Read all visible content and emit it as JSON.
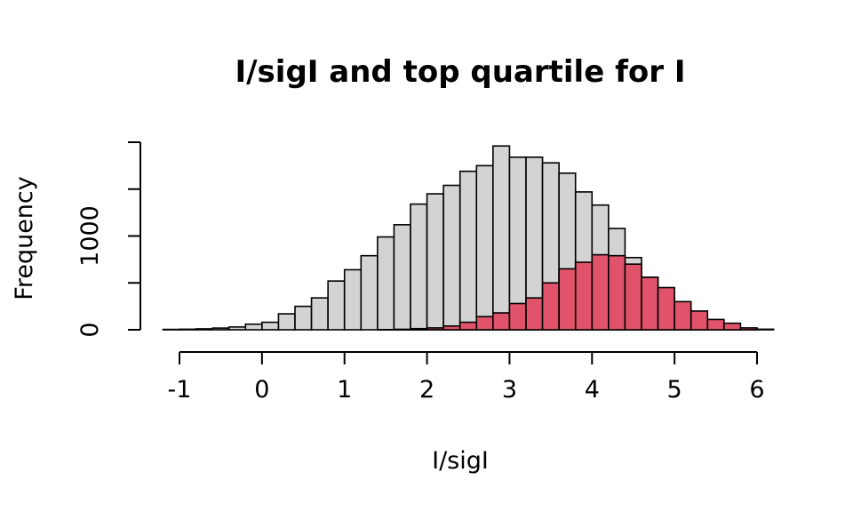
{
  "chart_data": {
    "type": "bar",
    "title": "I/sigI and top quartile for I",
    "xlabel": "I/sigI",
    "ylabel": "Frequency",
    "xlim": [
      -1,
      6
    ],
    "ylim": [
      0,
      2000
    ],
    "x_ticks": [
      "-1",
      "0",
      "1",
      "2",
      "3",
      "4",
      "5",
      "6"
    ],
    "y_ticks": [
      "0",
      "1000"
    ],
    "y_tick_marks": [
      0,
      500,
      1000,
      1500,
      2000
    ],
    "bin_width": 0.2,
    "bin_start": -1.2,
    "grid": false,
    "legend": "none",
    "series": [
      {
        "color": "#D3D3D3",
        "values": [
          4,
          6,
          10,
          18,
          30,
          60,
          80,
          170,
          250,
          340,
          520,
          640,
          790,
          990,
          1120,
          1340,
          1450,
          1540,
          1690,
          1750,
          1960,
          1840,
          1840,
          1780,
          1670,
          1470,
          1330,
          1080,
          770,
          560,
          360,
          230,
          120,
          70,
          25,
          10
        ]
      },
      {
        "color": "#E0536A",
        "values": [
          0,
          0,
          0,
          0,
          0,
          0,
          0,
          0,
          0,
          0,
          0,
          0,
          0,
          2,
          5,
          12,
          20,
          40,
          80,
          140,
          180,
          280,
          340,
          500,
          650,
          720,
          800,
          790,
          700,
          560,
          450,
          300,
          200,
          110,
          70,
          20,
          6
        ]
      }
    ]
  }
}
